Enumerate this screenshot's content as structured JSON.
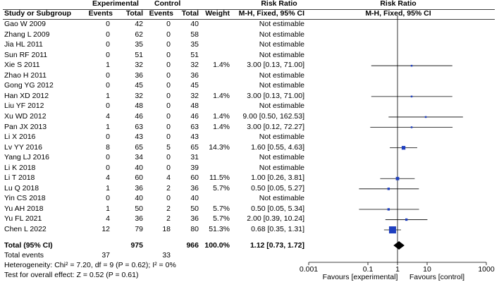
{
  "headers": {
    "experimental": "Experimental",
    "control": "Control",
    "risk_ratio_left": "Risk Ratio",
    "risk_ratio_right": "Risk Ratio",
    "study": "Study or Subgroup",
    "events_e": "Events",
    "total_e": "Total",
    "events_c": "Events",
    "total_c": "Total",
    "weight": "Weight",
    "method_left": "M-H, Fixed, 95% CI",
    "method_right": "M-H, Fixed, 95% CI"
  },
  "studies": [
    {
      "name": "Gao W 2009",
      "e_events": "0",
      "e_total": "42",
      "c_events": "0",
      "c_total": "40",
      "weight": "",
      "ci_text": "Not estimable"
    },
    {
      "name": "Zhang L 2009",
      "e_events": "0",
      "e_total": "62",
      "c_events": "0",
      "c_total": "58",
      "weight": "",
      "ci_text": "Not estimable"
    },
    {
      "name": "Jia HL 2011",
      "e_events": "0",
      "e_total": "35",
      "c_events": "0",
      "c_total": "35",
      "weight": "",
      "ci_text": "Not estimable"
    },
    {
      "name": "Sun RF 2011",
      "e_events": "0",
      "e_total": "51",
      "c_events": "0",
      "c_total": "51",
      "weight": "",
      "ci_text": "Not estimable"
    },
    {
      "name": "Xie S 2011",
      "e_events": "1",
      "e_total": "32",
      "c_events": "0",
      "c_total": "32",
      "weight": "1.4%",
      "ci_text": "3.00 [0.13, 71.00]"
    },
    {
      "name": "Zhao H 2011",
      "e_events": "0",
      "e_total": "36",
      "c_events": "0",
      "c_total": "36",
      "weight": "",
      "ci_text": "Not estimable"
    },
    {
      "name": "Gong YG 2012",
      "e_events": "0",
      "e_total": "45",
      "c_events": "0",
      "c_total": "45",
      "weight": "",
      "ci_text": "Not estimable"
    },
    {
      "name": "Han XD 2012",
      "e_events": "1",
      "e_total": "32",
      "c_events": "0",
      "c_total": "32",
      "weight": "1.4%",
      "ci_text": "3.00 [0.13, 71.00]"
    },
    {
      "name": "Liu YF 2012",
      "e_events": "0",
      "e_total": "48",
      "c_events": "0",
      "c_total": "48",
      "weight": "",
      "ci_text": "Not estimable"
    },
    {
      "name": "Xu WD 2012",
      "e_events": "4",
      "e_total": "46",
      "c_events": "0",
      "c_total": "46",
      "weight": "1.4%",
      "ci_text": "9.00 [0.50, 162.53]"
    },
    {
      "name": "Pan JX 2013",
      "e_events": "1",
      "e_total": "63",
      "c_events": "0",
      "c_total": "63",
      "weight": "1.4%",
      "ci_text": "3.00 [0.12, 72.27]"
    },
    {
      "name": "Li X 2016",
      "e_events": "0",
      "e_total": "43",
      "c_events": "0",
      "c_total": "43",
      "weight": "",
      "ci_text": "Not estimable"
    },
    {
      "name": "Lv YY 2016",
      "e_events": "8",
      "e_total": "65",
      "c_events": "5",
      "c_total": "65",
      "weight": "14.3%",
      "ci_text": "1.60 [0.55, 4.63]"
    },
    {
      "name": "Yang LJ 2016",
      "e_events": "0",
      "e_total": "34",
      "c_events": "0",
      "c_total": "31",
      "weight": "",
      "ci_text": "Not estimable"
    },
    {
      "name": "Li K 2018",
      "e_events": "0",
      "e_total": "40",
      "c_events": "0",
      "c_total": "39",
      "weight": "",
      "ci_text": "Not estimable"
    },
    {
      "name": "Li T 2018",
      "e_events": "4",
      "e_total": "60",
      "c_events": "4",
      "c_total": "60",
      "weight": "11.5%",
      "ci_text": "1.00 [0.26, 3.81]"
    },
    {
      "name": "Lu Q 2018",
      "e_events": "1",
      "e_total": "36",
      "c_events": "2",
      "c_total": "36",
      "weight": "5.7%",
      "ci_text": "0.50 [0.05, 5.27]"
    },
    {
      "name": "Yin CS 2018",
      "e_events": "0",
      "e_total": "40",
      "c_events": "0",
      "c_total": "40",
      "weight": "",
      "ci_text": "Not estimable"
    },
    {
      "name": "Yu AH 2018",
      "e_events": "1",
      "e_total": "50",
      "c_events": "2",
      "c_total": "50",
      "weight": "5.7%",
      "ci_text": "0.50 [0.05, 5.34]"
    },
    {
      "name": "Yu FL 2021",
      "e_events": "4",
      "e_total": "36",
      "c_events": "2",
      "c_total": "36",
      "weight": "5.7%",
      "ci_text": "2.00 [0.39, 10.24]"
    },
    {
      "name": "Chen L 2022",
      "e_events": "12",
      "e_total": "79",
      "c_events": "18",
      "c_total": "80",
      "weight": "51.3%",
      "ci_text": "0.68 [0.35, 1.31]"
    }
  ],
  "total": {
    "label": "Total (95% CI)",
    "e_total": "975",
    "c_total": "966",
    "weight": "100.0%",
    "ci_text": "1.12 [0.73, 1.72]"
  },
  "total_events": {
    "label": "Total events",
    "e_events": "37",
    "c_events": "33"
  },
  "heterogeneity": "Heterogeneity: Chi² = 7.20, df = 9 (P = 0.62); I² = 0%",
  "overall_effect": "Test for overall effect: Z = 0.52 (P = 0.61)",
  "axis": {
    "ticks": [
      0.001,
      0.1,
      1,
      10,
      1000
    ],
    "tick_labels": [
      "0.001",
      "0.1",
      "1",
      "10",
      "1000"
    ],
    "favours_left": "Favours [experimental]",
    "favours_right": "Favours [control]"
  },
  "colors": {
    "marker": "#1f3fbf",
    "line": "#000000",
    "diamond": "#000000"
  },
  "chart_data": {
    "type": "forest",
    "title": "Risk Ratio M-H, Fixed, 95% CI",
    "scale": "log",
    "xlim": [
      0.001,
      1000
    ],
    "null_value": 1,
    "studies": [
      {
        "name": "Gao W 2009",
        "rr": null
      },
      {
        "name": "Zhang L 2009",
        "rr": null
      },
      {
        "name": "Jia HL 2011",
        "rr": null
      },
      {
        "name": "Sun RF 2011",
        "rr": null
      },
      {
        "name": "Xie S 2011",
        "rr": 3.0,
        "lower": 0.13,
        "upper": 71.0,
        "weight": 1.4
      },
      {
        "name": "Zhao H 2011",
        "rr": null
      },
      {
        "name": "Gong YG 2012",
        "rr": null
      },
      {
        "name": "Han XD 2012",
        "rr": 3.0,
        "lower": 0.13,
        "upper": 71.0,
        "weight": 1.4
      },
      {
        "name": "Liu YF 2012",
        "rr": null
      },
      {
        "name": "Xu WD 2012",
        "rr": 9.0,
        "lower": 0.5,
        "upper": 162.53,
        "weight": 1.4
      },
      {
        "name": "Pan JX 2013",
        "rr": 3.0,
        "lower": 0.12,
        "upper": 72.27,
        "weight": 1.4
      },
      {
        "name": "Li X 2016",
        "rr": null
      },
      {
        "name": "Lv YY 2016",
        "rr": 1.6,
        "lower": 0.55,
        "upper": 4.63,
        "weight": 14.3
      },
      {
        "name": "Yang LJ 2016",
        "rr": null
      },
      {
        "name": "Li K 2018",
        "rr": null
      },
      {
        "name": "Li T 2018",
        "rr": 1.0,
        "lower": 0.26,
        "upper": 3.81,
        "weight": 11.5
      },
      {
        "name": "Lu Q 2018",
        "rr": 0.5,
        "lower": 0.05,
        "upper": 5.27,
        "weight": 5.7
      },
      {
        "name": "Yin CS 2018",
        "rr": null
      },
      {
        "name": "Yu AH 2018",
        "rr": 0.5,
        "lower": 0.05,
        "upper": 5.34,
        "weight": 5.7
      },
      {
        "name": "Yu FL 2021",
        "rr": 2.0,
        "lower": 0.39,
        "upper": 10.24,
        "weight": 5.7
      },
      {
        "name": "Chen L 2022",
        "rr": 0.68,
        "lower": 0.35,
        "upper": 1.31,
        "weight": 51.3
      }
    ],
    "pooled": {
      "rr": 1.12,
      "lower": 0.73,
      "upper": 1.72
    }
  }
}
